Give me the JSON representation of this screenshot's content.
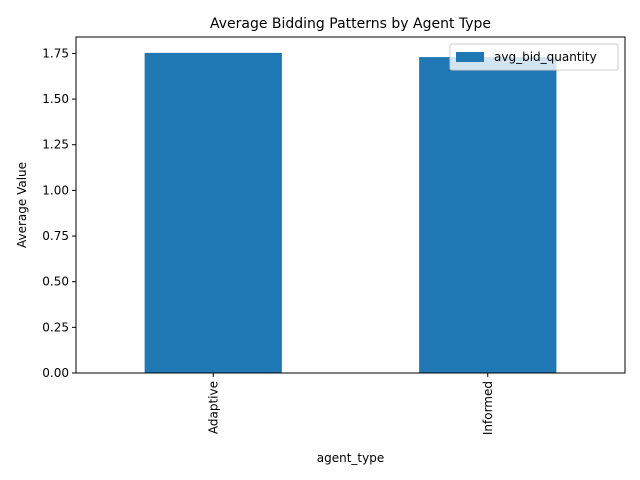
{
  "chart_data": {
    "type": "bar",
    "title": "Average Bidding Patterns by Agent Type",
    "xlabel": "agent_type",
    "ylabel": "Average Value",
    "categories": [
      "Adaptive",
      "Informed"
    ],
    "series": [
      {
        "name": "avg_bid_quantity",
        "values": [
          1.753,
          1.73
        ],
        "color": "#1f77b4"
      }
    ],
    "ylim": [
      0,
      1.84
    ],
    "yticks": [
      0.0,
      0.25,
      0.5,
      0.75,
      1.0,
      1.25,
      1.5,
      1.75
    ],
    "ytick_labels": [
      "0.00",
      "0.25",
      "0.50",
      "0.75",
      "1.00",
      "1.25",
      "1.50",
      "1.75"
    ],
    "grid": false,
    "legend_position": "top-right",
    "xtick_rotation": "vertical"
  }
}
